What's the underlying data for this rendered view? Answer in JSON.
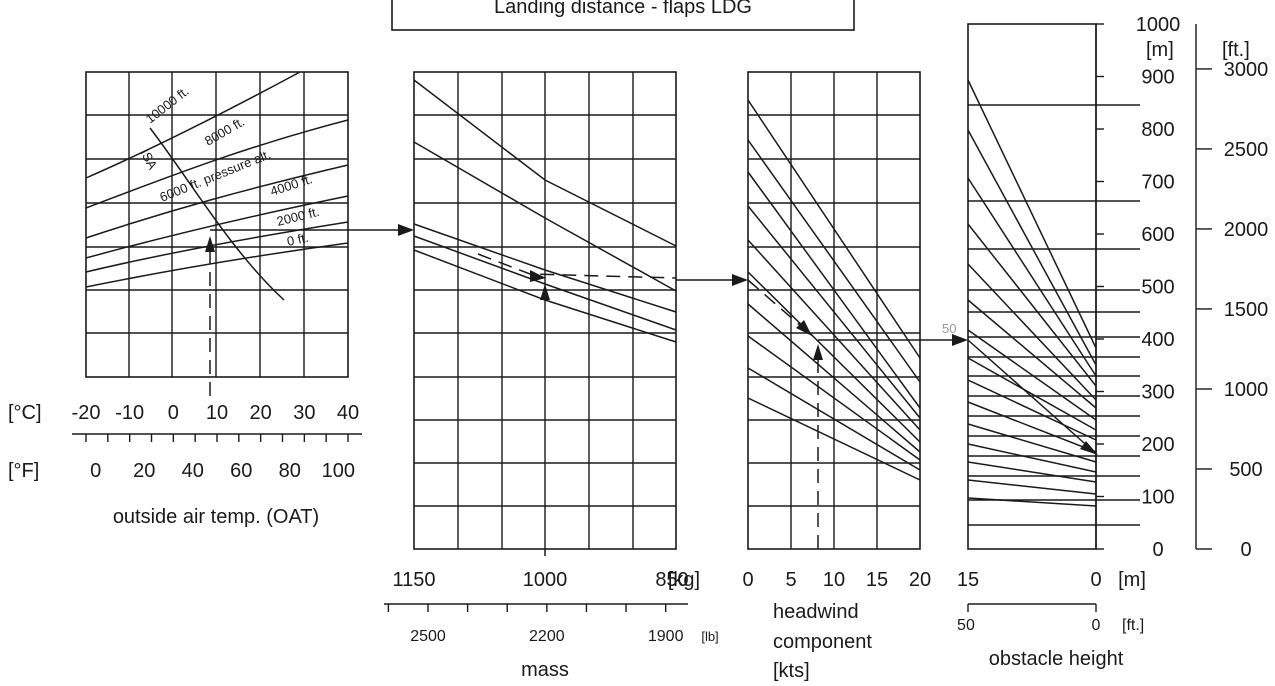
{
  "chart_data": {
    "type": "nomogram",
    "title": "Landing distance - flaps LDG",
    "panels": [
      {
        "name": "temperature-altitude",
        "xlabel": "outside air temp. (OAT)",
        "x_unit_c": "[°C]",
        "x_ticks_c": [
          "-20",
          "-10",
          "0",
          "10",
          "20",
          "30",
          "40"
        ],
        "x_unit_f": "[°F]",
        "x_ticks_f": [
          "0",
          "20",
          "40",
          "60",
          "80",
          "100"
        ],
        "xlim_c": [
          -20,
          40
        ],
        "curve_labels": [
          "10000 ft.",
          "8000 ft.",
          "6000 ft. pressure alt.",
          "4000 ft.",
          "2000 ft.",
          "0 ft.",
          "ISA"
        ],
        "example_oat_c": 10
      },
      {
        "name": "mass",
        "xlabel": "mass",
        "x_unit_kg": "[kg]",
        "x_ticks_kg": [
          "1150",
          "1000",
          "850"
        ],
        "x_unit_lb": "[lb]",
        "x_ticks_lb": [
          "2500",
          "2200",
          "1900"
        ],
        "xlim_kg": [
          1150,
          850
        ],
        "example_mass_kg": 1000
      },
      {
        "name": "headwind",
        "xlabel_line1": "headwind",
        "xlabel_line2": "component",
        "xlabel_line3": "[kts]",
        "x_ticks": [
          "0",
          "5",
          "10",
          "15",
          "20"
        ],
        "xlim": [
          0,
          20
        ],
        "example_headwind_kts": 8
      },
      {
        "name": "obstacle-height",
        "xlabel": "obstacle height",
        "x_unit_m": "[m]",
        "x_ticks_m": [
          "15",
          "0"
        ],
        "x_unit_ft": "[ft.]",
        "x_ticks_ft": [
          "50",
          "0"
        ],
        "xlim_m": [
          15,
          0
        ],
        "annotations": [
          "50"
        ]
      }
    ],
    "distance_axis": {
      "unit_m": "[m]",
      "ticks_m": [
        "0",
        "100",
        "200",
        "300",
        "400",
        "500",
        "600",
        "700",
        "800",
        "900",
        "1000"
      ],
      "unit_ft": "[ft.]",
      "ticks_ft": [
        "0",
        "500",
        "1000",
        "1500",
        "2000",
        "2500",
        "3000"
      ],
      "ylim_m": [
        0,
        1000
      ]
    },
    "grid": true
  }
}
